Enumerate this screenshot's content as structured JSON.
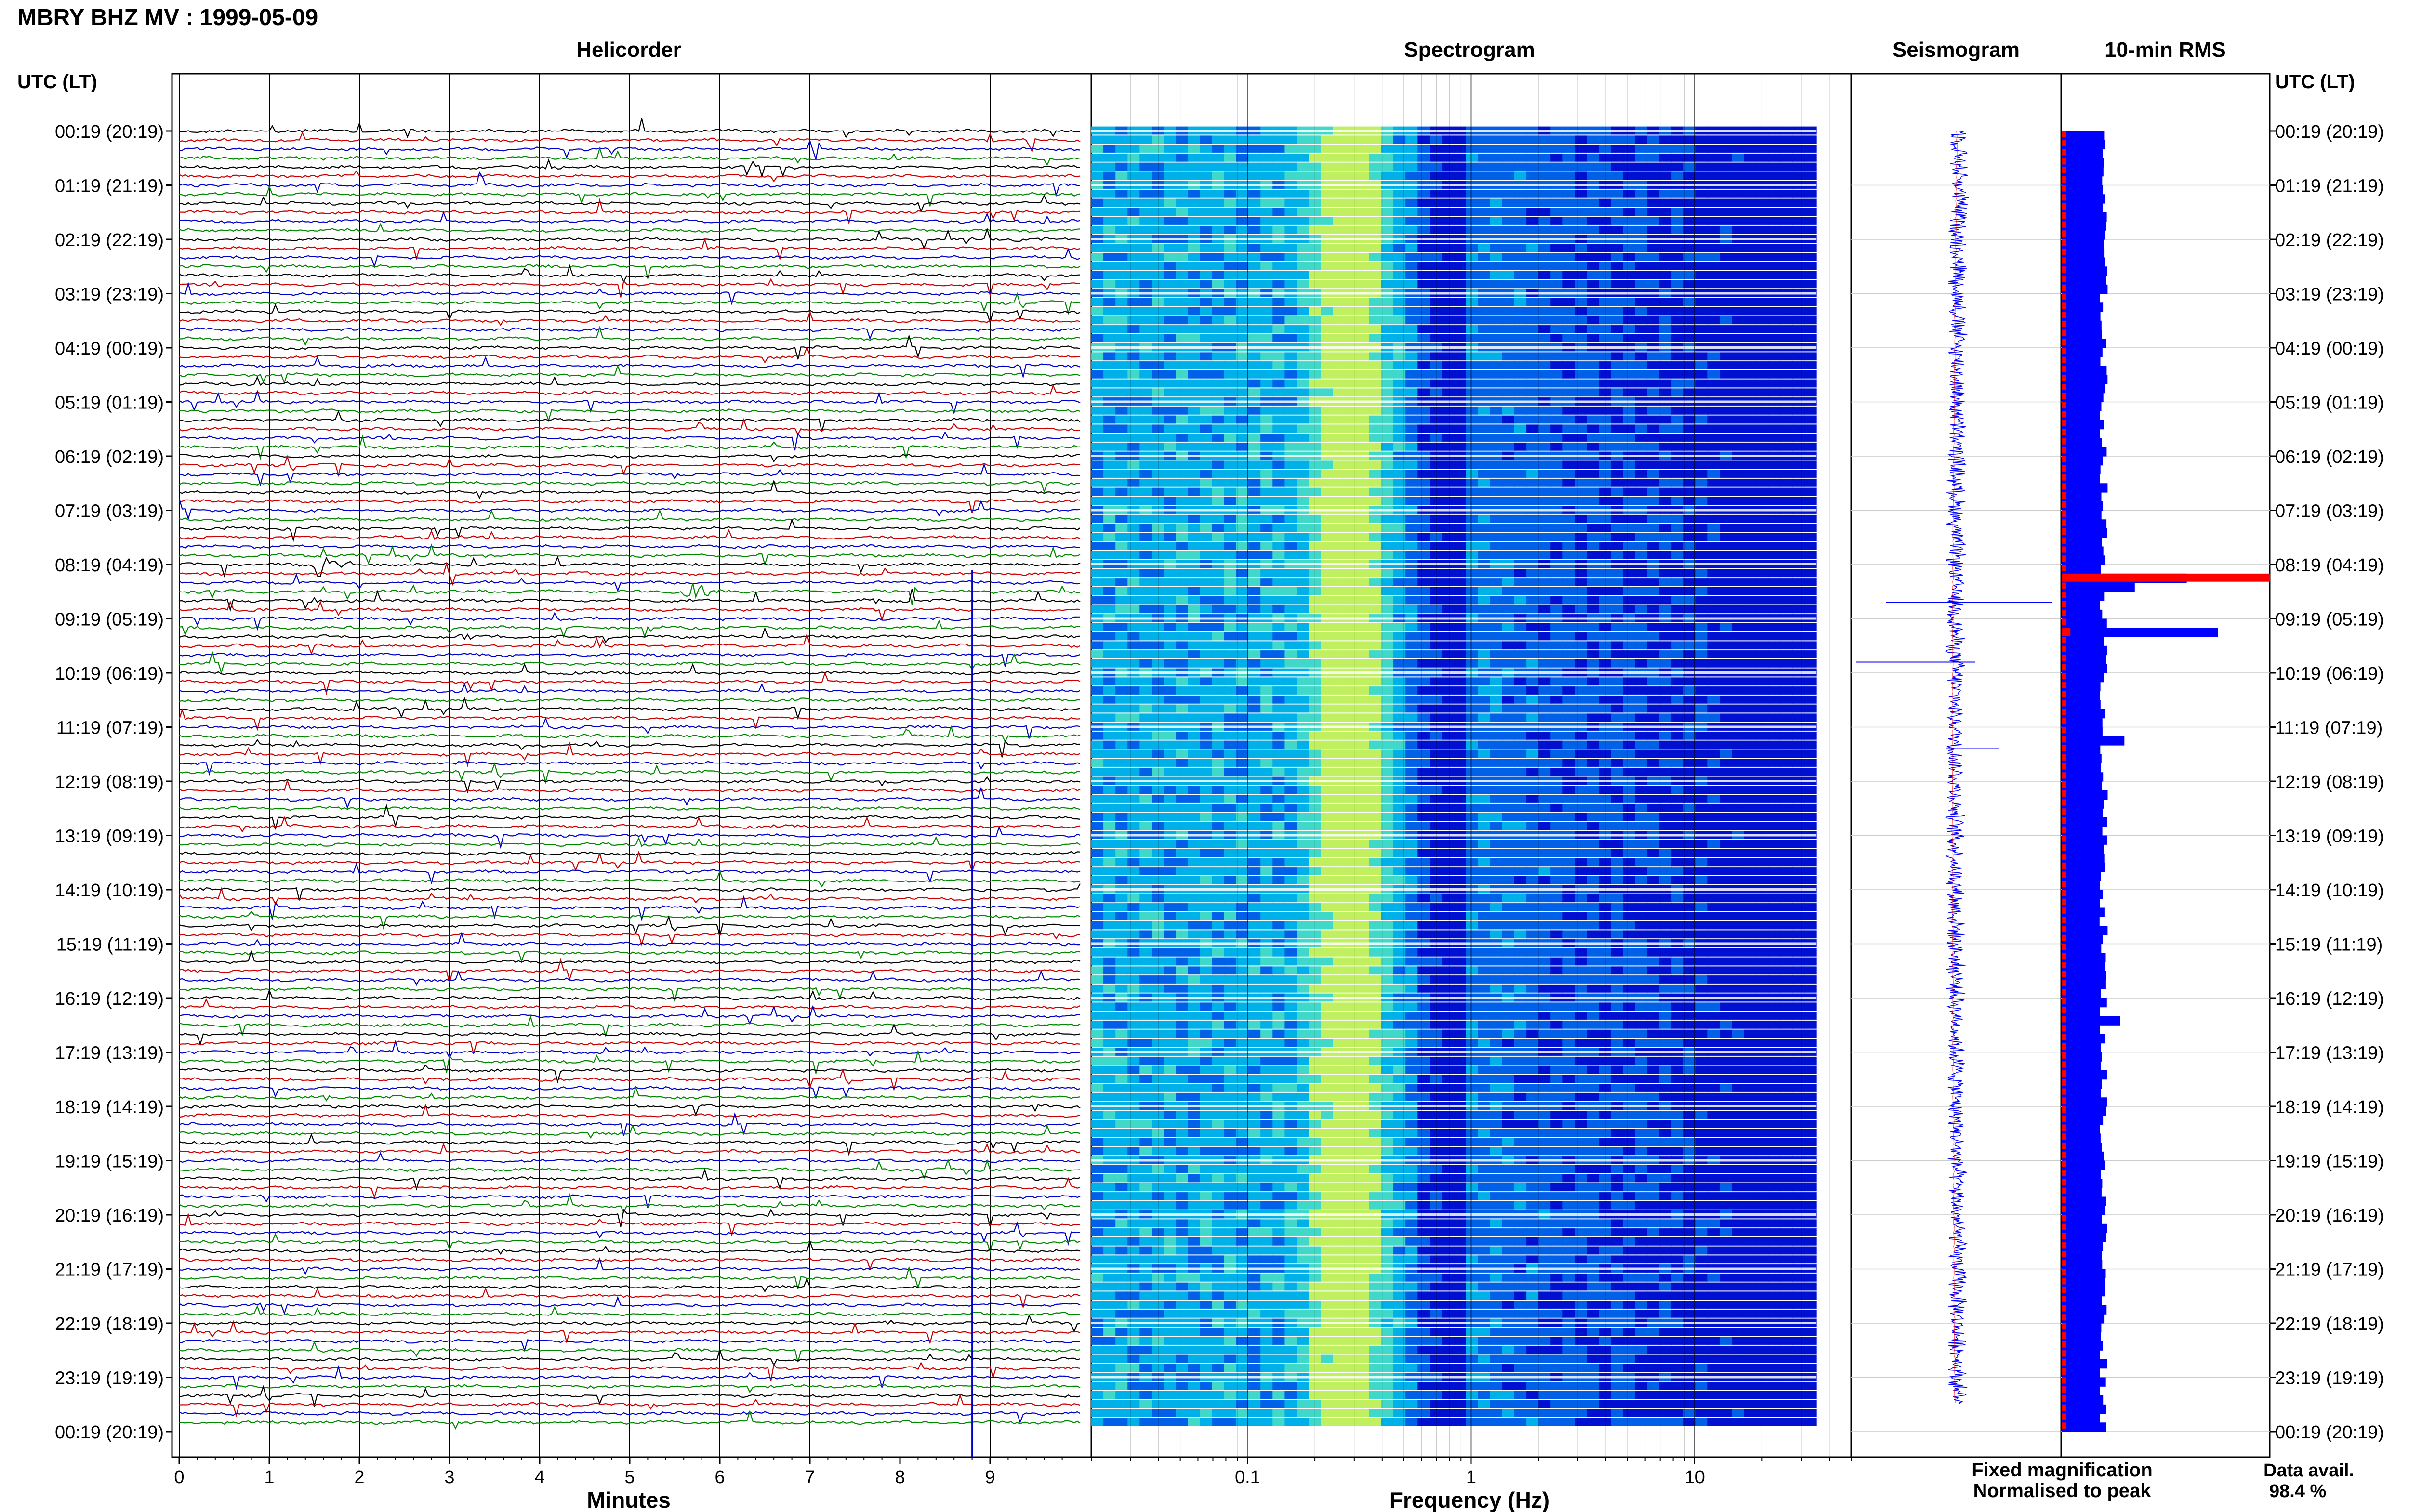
{
  "header": {
    "title": "MBRY BHZ MV : 1999-05-09"
  },
  "panels": {
    "helicorder": "Helicorder",
    "spectrogram": "Spectrogram",
    "seismogram": "Seismogram",
    "rms": "10-min RMS"
  },
  "axis_labels": {
    "time_left": "UTC (LT)",
    "time_right": "UTC (LT)",
    "minutes": "Minutes",
    "frequency": "Frequency (Hz)"
  },
  "legend": {
    "fixed": "Fixed magnification",
    "normalised": "Normalised to peak",
    "fixed_color": "#0000ff",
    "normalised_color": "#ff0000"
  },
  "availability": {
    "label": "Data avail.",
    "value": "98.4 %"
  },
  "colors": {
    "trace_cycle": [
      "#000000",
      "#cc0000",
      "#0000cc",
      "#008800"
    ],
    "rms_fixed": "#0000ff",
    "rms_normalised": "#ff0000"
  },
  "chart_data": [
    {
      "type": "line",
      "name": "helicorder",
      "xlabel": "Minutes",
      "xlim": [
        0,
        10
      ],
      "x_ticks": [
        "0",
        "1",
        "2",
        "3",
        "4",
        "5",
        "6",
        "7",
        "8",
        "9"
      ],
      "y_ticks": [
        "00:19 (20:19)",
        "01:19 (21:19)",
        "02:19 (22:19)",
        "03:19 (23:19)",
        "04:19 (00:19)",
        "05:19 (01:19)",
        "06:19 (02:19)",
        "07:19 (03:19)",
        "08:19 (04:19)",
        "09:19 (05:19)",
        "10:19 (06:19)",
        "11:19 (07:19)",
        "12:19 (08:19)",
        "13:19 (09:19)",
        "14:19 (10:19)",
        "15:19 (11:19)",
        "16:19 (12:19)",
        "17:19 (13:19)",
        "18:19 (14:19)",
        "19:19 (15:19)",
        "20:19 (16:19)",
        "21:19 (17:19)",
        "22:19 (18:19)",
        "23:19 (19:19)",
        "00:19 (20:19)"
      ],
      "lines_per_hour": 6,
      "line_count": 144,
      "events": [
        {
          "line": 48,
          "minute": 1.5,
          "amplitude": 1.8
        },
        {
          "line": 51,
          "minute": 5.6,
          "amplitude": 2.6
        },
        {
          "line": 52,
          "minute": 1.4,
          "amplitude": 0.8
        },
        {
          "line": 56,
          "minute": 3.1,
          "amplitude": 0.5
        },
        {
          "line": 57,
          "minute": 4.6,
          "amplitude": 1.2
        },
        {
          "line": 132,
          "minute": 7.8,
          "amplitude": 0.5
        }
      ]
    },
    {
      "type": "heatmap",
      "name": "spectrogram",
      "xlabel": "Frequency (Hz)",
      "x_scale": "log",
      "xlim": [
        0.02,
        50
      ],
      "data_xlim": [
        0.02,
        35
      ],
      "x_ticks": [
        "0.1",
        "1",
        "10"
      ],
      "dominant_band_hz": [
        0.2,
        0.4
      ],
      "colormap": [
        "#0010d0",
        "#0060e8",
        "#00b0e8",
        "#40d8c8",
        "#c0f060"
      ]
    },
    {
      "type": "line",
      "name": "seismogram",
      "note_x": "normalised amplitude"
    },
    {
      "type": "bar",
      "name": "10-min RMS",
      "orientation": "horizontal",
      "bins": 144,
      "baseline_fixed": 0.22,
      "peaks_fixed": [
        {
          "bin": 49,
          "value": 0.6,
          "normalised": 1.0
        },
        {
          "bin": 50,
          "value": 0.35
        },
        {
          "bin": 55,
          "value": 0.75,
          "normalised": 0.04
        },
        {
          "bin": 67,
          "value": 0.3
        },
        {
          "bin": 98,
          "value": 0.28
        }
      ]
    }
  ]
}
